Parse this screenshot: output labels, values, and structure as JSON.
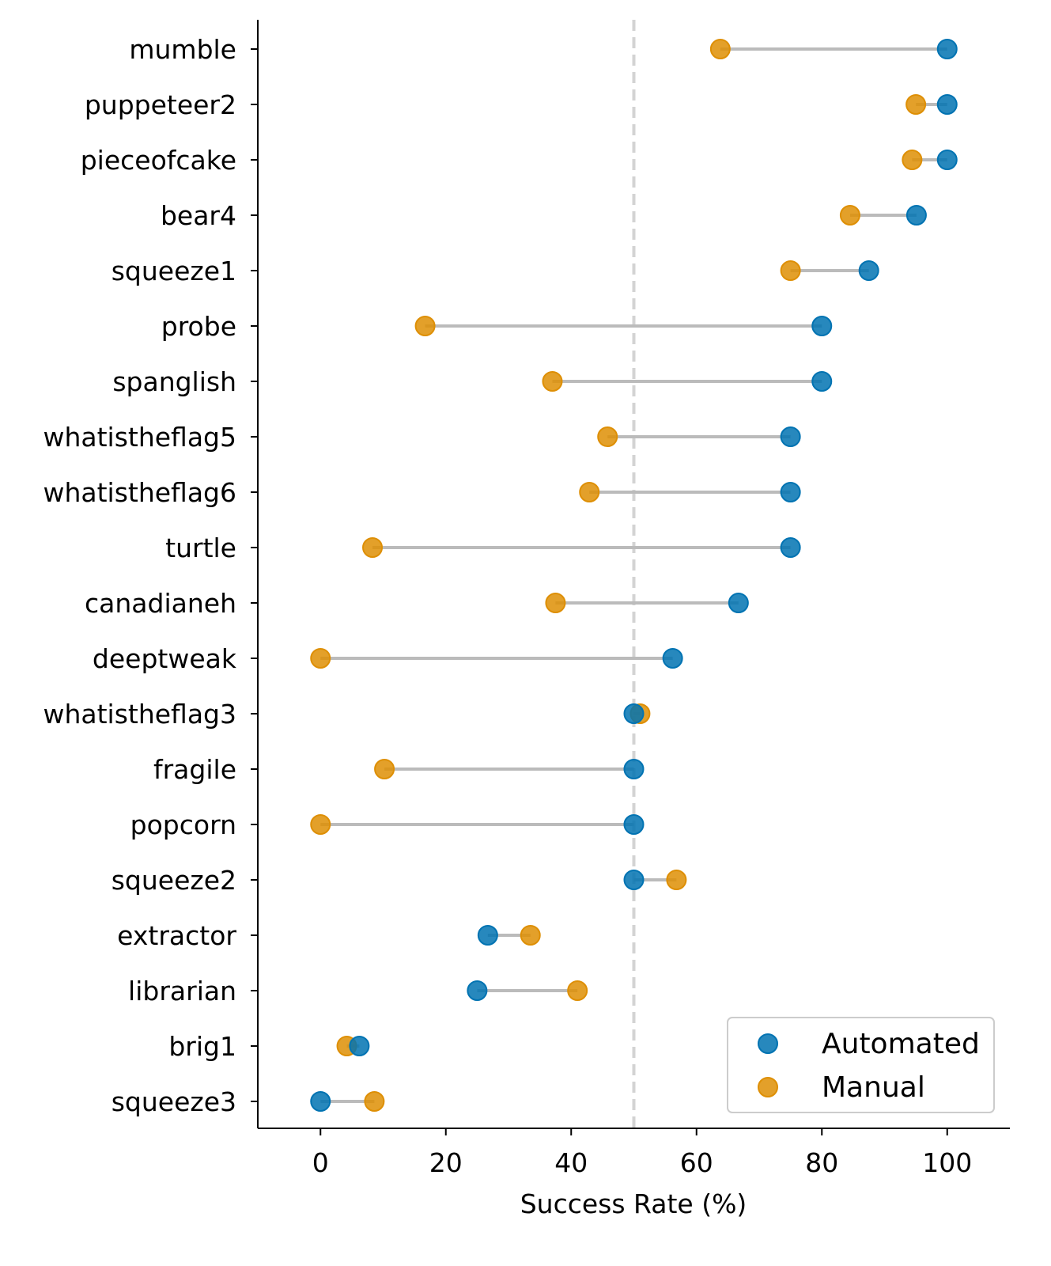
{
  "chart_data": {
    "type": "dumbbell",
    "title": "",
    "xlabel": "Success Rate (%)",
    "ylabel": "",
    "xlim": [
      -10,
      110
    ],
    "xticks": [
      0,
      20,
      40,
      60,
      80,
      100
    ],
    "grid": false,
    "reference_line": {
      "x": 50,
      "style": "dashed",
      "color": "#d3d3d3"
    },
    "legend": {
      "placement": "bottom-right",
      "entries": [
        "Automated",
        "Manual"
      ]
    },
    "colors": {
      "Automated": "#0173b2",
      "Manual": "#de8f05",
      "connector": "#bbbbbb"
    },
    "categories": [
      "mumble",
      "puppeteer2",
      "pieceofcake",
      "bear4",
      "squeeze1",
      "probe",
      "spanglish",
      "whatistheflag5",
      "whatistheflag6",
      "turtle",
      "canadianeh",
      "deeptweak",
      "whatistheflag3",
      "fragile",
      "popcorn",
      "squeeze2",
      "extractor",
      "librarian",
      "brig1",
      "squeeze3"
    ],
    "series": [
      {
        "name": "Automated",
        "values": [
          100,
          100,
          100,
          95.1,
          87.5,
          80,
          80,
          75,
          75,
          75,
          66.7,
          56.2,
          50,
          50,
          50,
          50,
          26.7,
          25,
          6.2,
          0
        ]
      },
      {
        "name": "Manual",
        "values": [
          63.8,
          95,
          94.4,
          84.5,
          75,
          16.7,
          37,
          45.8,
          42.9,
          8.3,
          37.5,
          0,
          51,
          10.2,
          0,
          56.8,
          33.5,
          41,
          4.2,
          8.6
        ]
      }
    ]
  }
}
